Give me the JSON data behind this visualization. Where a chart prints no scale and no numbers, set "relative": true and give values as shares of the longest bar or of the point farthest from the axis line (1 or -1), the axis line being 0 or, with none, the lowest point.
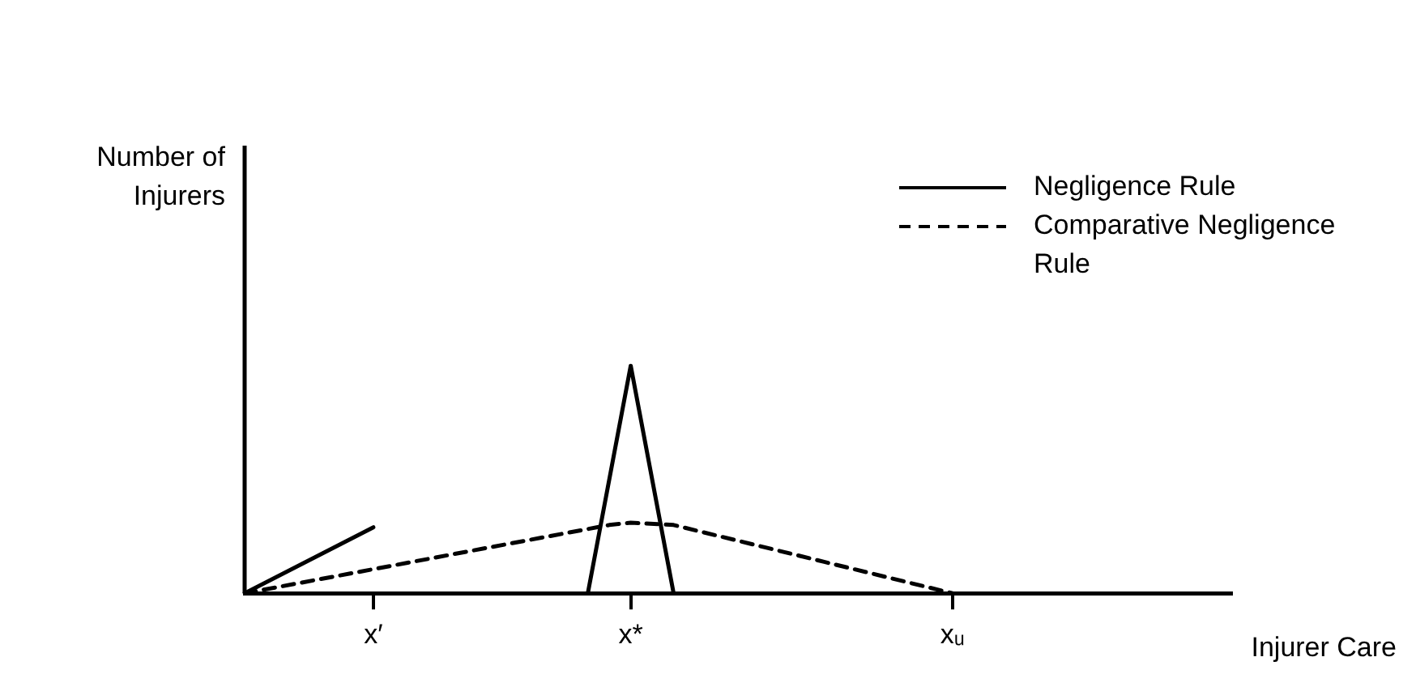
{
  "chart_data": {
    "type": "line",
    "relative": true,
    "xlabel": "Injurer Care",
    "annotations": [
      "Number of Injurers"
    ],
    "legend": "top right",
    "grid": false,
    "categories": [
      null,
      null,
      null,
      null,
      null,
      null,
      "x′",
      null,
      null,
      null,
      null,
      null,
      null,
      null,
      null,
      null,
      null,
      null,
      "x*",
      null,
      null,
      null,
      null,
      null,
      null,
      null,
      null,
      null,
      null,
      null,
      null,
      null,
      null,
      "xᵤ",
      null,
      null,
      null,
      null,
      null,
      null,
      null,
      null,
      null,
      null,
      null,
      null,
      null
    ],
    "series": [
      {
        "name": "Negligence Rule",
        "color": "#000000",
        "line_style": "solid",
        "values": [
          0,
          null,
          null,
          null,
          null,
          null,
          0.29,
          null,
          null,
          null,
          null,
          null,
          null,
          null,
          null,
          null,
          null,
          null,
          null,
          null,
          null,
          null,
          null,
          null,
          null,
          null,
          null,
          null,
          null,
          null,
          null,
          null,
          null,
          null,
          null,
          null,
          null,
          null,
          null,
          null,
          null,
          null,
          null,
          null,
          null,
          null,
          null
        ]
      },
      {
        "color": "#000000",
        "line_style": "solid",
        "values": [
          null,
          null,
          null,
          null,
          null,
          null,
          null,
          null,
          null,
          null,
          null,
          null,
          null,
          null,
          null,
          null,
          0,
          null,
          1,
          null,
          0,
          null,
          null,
          null,
          null,
          null,
          null,
          null,
          null,
          null,
          null,
          null,
          null,
          null,
          null,
          null,
          null,
          null,
          null,
          null,
          null,
          null,
          null,
          null,
          null,
          null,
          null
        ]
      },
      {
        "name": "Comparative Negligence Rule",
        "color": "#000000",
        "line_style": "dashed",
        "values": [
          0,
          null,
          null,
          null,
          null,
          null,
          null,
          null,
          null,
          null,
          null,
          null,
          null,
          null,
          null,
          null,
          null,
          0.3,
          0.31,
          null,
          0.3,
          null,
          null,
          null,
          null,
          null,
          null,
          null,
          null,
          null,
          null,
          null,
          null,
          0,
          null,
          null,
          null,
          null,
          null,
          null,
          null,
          null,
          null,
          null,
          null,
          null,
          null
        ]
      }
    ]
  }
}
